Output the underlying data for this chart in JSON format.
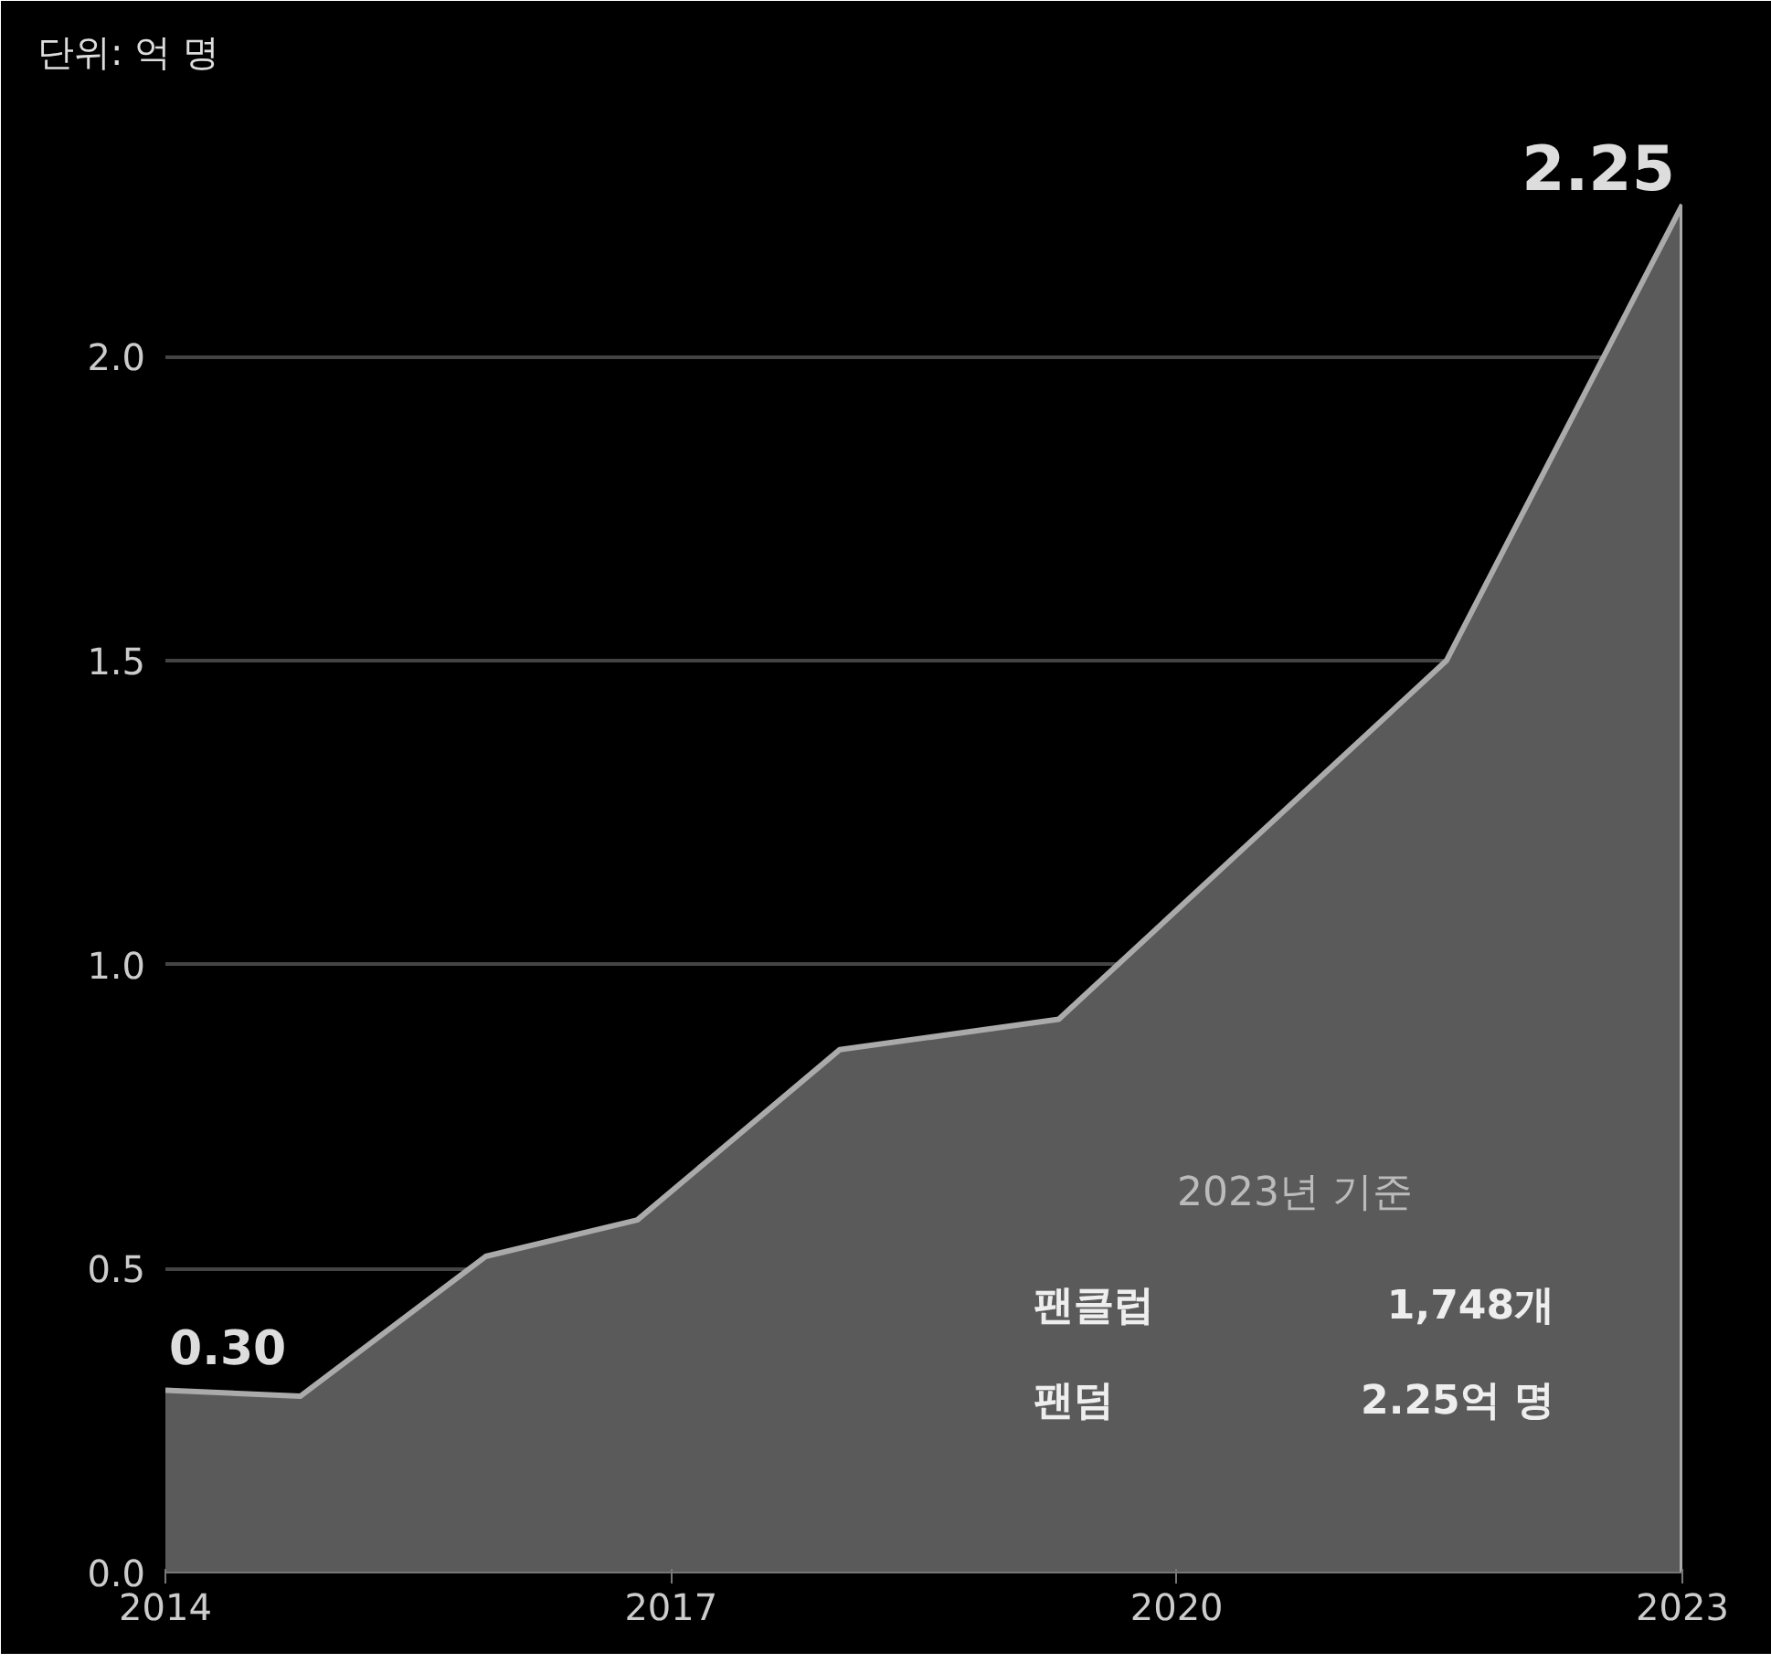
{
  "chart_data": {
    "type": "area",
    "ylabel": "단위: 억 명",
    "x": [
      2014,
      2014.8,
      2015.9,
      2016.8,
      2018.0,
      2019.3,
      2021.6,
      2023
    ],
    "values": [
      0.3,
      0.29,
      0.52,
      0.58,
      0.86,
      0.91,
      1.5,
      2.25
    ],
    "value_labels": [
      "0.30",
      null,
      null,
      null,
      null,
      null,
      null,
      "2.25"
    ],
    "color": "#5a5a5a",
    "xlim": [
      2014,
      2023
    ],
    "xticks": [
      2014,
      2017,
      2020,
      2023
    ],
    "ylim": [
      0,
      2.45
    ],
    "yticks": [
      {
        "value": 0,
        "label": "0.0"
      },
      {
        "value": 0.5,
        "label": "0.5"
      },
      {
        "value": 1,
        "label": "1.0"
      },
      {
        "value": 1.5,
        "label": "1.5"
      },
      {
        "value": 2,
        "label": "2.0"
      }
    ],
    "grid": "y",
    "annotations": [
      "2023년 기준",
      "팬클럽",
      "1,748개",
      "팬덤",
      "2.25억 명"
    ]
  }
}
